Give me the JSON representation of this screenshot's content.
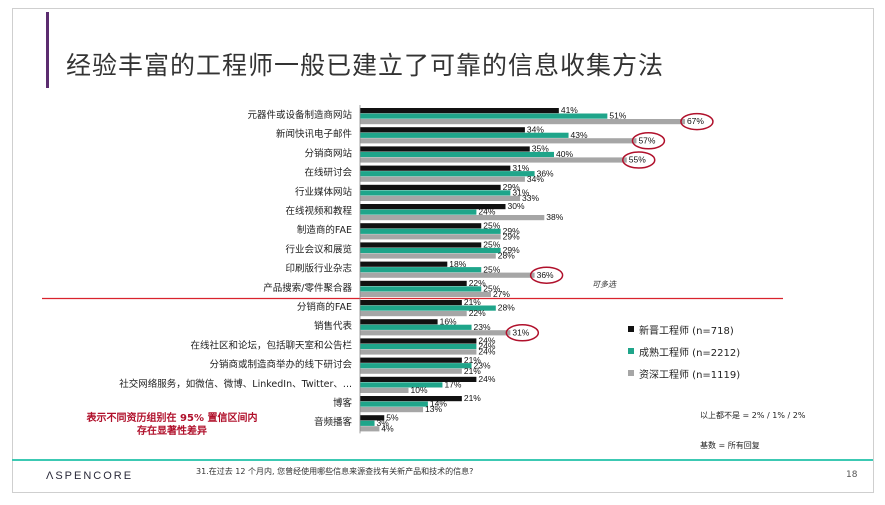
{
  "slide": {
    "title": "经验丰富的工程师一般已建立了可靠的信息收集方法",
    "brand": "ΛSPENCORE",
    "question": "31.在过去 12 个月内, 您曾经使用哪些信息来源查找有关新产品和技术的信息?",
    "page_number": "18",
    "multi_select_note": "可多选",
    "significance_note_line1": "表示不同资历组别在 95% 置信区间内",
    "significance_note_line2": "存在显著性差异",
    "not_sure_note": "以上都不是 = 2% / 1% / 2%",
    "base_note": "基数 = 所有回复"
  },
  "chart_data": {
    "type": "bar",
    "orientation": "horizontal",
    "categories": [
      "元器件或设备制造商网站",
      "新闻快讯电子邮件",
      "分销商网站",
      "在线研讨会",
      "行业媒体网站",
      "在线视频和教程",
      "制造商的FAE",
      "行业会议和展览",
      "印刷版行业杂志",
      "产品搜索/零件聚合器",
      "分销商的FAE",
      "销售代表",
      "在线社区和论坛，包括聊天室和公告栏",
      "分销商或制造商举办的线下研讨会",
      "社交网络服务，如微信、微博、LinkedIn、Twitter、...",
      "博客",
      "音频播客"
    ],
    "series": [
      {
        "name": "新晋工程师 (n=718)",
        "color": "#111111",
        "values": [
          41,
          34,
          35,
          31,
          29,
          30,
          25,
          25,
          18,
          22,
          21,
          16,
          24,
          21,
          24,
          21,
          5
        ]
      },
      {
        "name": "成熟工程师 (n=2212)",
        "color": "#1fa58a",
        "values": [
          51,
          43,
          40,
          36,
          31,
          24,
          29,
          29,
          25,
          25,
          28,
          23,
          24,
          23,
          17,
          14,
          3
        ]
      },
      {
        "name": "资深工程师 (n=1119)",
        "color": "#a6a6a6",
        "values": [
          67,
          57,
          55,
          34,
          33,
          38,
          29,
          28,
          36,
          27,
          22,
          31,
          24,
          21,
          10,
          13,
          4
        ]
      }
    ],
    "highlighted": [
      {
        "category": "元器件或设备制造商网站",
        "series": "资深工程师 (n=1119)",
        "value": 67
      },
      {
        "category": "新闻快讯电子邮件",
        "series": "资深工程师 (n=1119)",
        "value": 57
      },
      {
        "category": "分销商网站",
        "series": "资深工程师 (n=1119)",
        "value": 55
      },
      {
        "category": "印刷版行业杂志",
        "series": "资深工程师 (n=1119)",
        "value": 36
      },
      {
        "category": "销售代表",
        "series": "资深工程师 (n=1119)",
        "value": 31
      }
    ],
    "value_suffix": "%",
    "divider_after": "产品搜索/零件聚合器",
    "colors": {
      "accent_line": "#3cc9b3",
      "highlight": "#b0102b",
      "divider": "#d9232d"
    }
  }
}
